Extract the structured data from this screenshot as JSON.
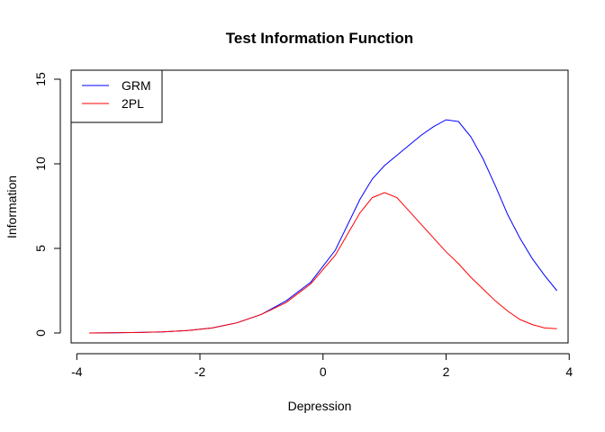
{
  "chart_data": {
    "type": "line",
    "title": "Test Information Function",
    "xlabel": "Depression",
    "ylabel": "Information",
    "xlim": [
      -4,
      4
    ],
    "ylim": [
      0,
      15
    ],
    "xticks": [
      "-4",
      "-2",
      "0",
      "2",
      "4"
    ],
    "yticks": [
      "0",
      "5",
      "10",
      "15"
    ],
    "grid": false,
    "legend": {
      "placement": "top-left",
      "entries": [
        {
          "name": "GRM",
          "color": "#0000ff"
        },
        {
          "name": "2PL",
          "color": "#ff0000"
        }
      ]
    },
    "series": [
      {
        "name": "GRM",
        "color": "#0000ff",
        "x": [
          -3.8,
          -3.4,
          -3.0,
          -2.6,
          -2.2,
          -1.8,
          -1.4,
          -1.0,
          -0.6,
          -0.2,
          0.2,
          0.6,
          0.8,
          1.0,
          1.2,
          1.4,
          1.6,
          1.8,
          2.0,
          2.2,
          2.4,
          2.6,
          2.8,
          3.0,
          3.2,
          3.4,
          3.6,
          3.8
        ],
        "values": [
          0.0,
          0.01,
          0.03,
          0.07,
          0.15,
          0.3,
          0.6,
          1.1,
          1.9,
          3.0,
          4.9,
          7.9,
          9.1,
          9.9,
          10.5,
          11.1,
          11.7,
          12.2,
          12.6,
          12.5,
          11.6,
          10.3,
          8.7,
          7.0,
          5.6,
          4.4,
          3.4,
          2.5
        ]
      },
      {
        "name": "2PL",
        "color": "#ff0000",
        "x": [
          -3.8,
          -3.4,
          -3.0,
          -2.6,
          -2.2,
          -1.8,
          -1.4,
          -1.0,
          -0.6,
          -0.2,
          0.2,
          0.6,
          0.8,
          1.0,
          1.2,
          1.4,
          1.6,
          1.8,
          2.0,
          2.2,
          2.4,
          2.6,
          2.8,
          3.0,
          3.2,
          3.4,
          3.6,
          3.8
        ],
        "values": [
          0.0,
          0.01,
          0.03,
          0.07,
          0.15,
          0.3,
          0.6,
          1.1,
          1.8,
          2.9,
          4.6,
          7.1,
          8.0,
          8.3,
          8.0,
          7.2,
          6.4,
          5.6,
          4.8,
          4.1,
          3.3,
          2.6,
          1.9,
          1.3,
          0.8,
          0.5,
          0.3,
          0.25
        ]
      }
    ]
  }
}
